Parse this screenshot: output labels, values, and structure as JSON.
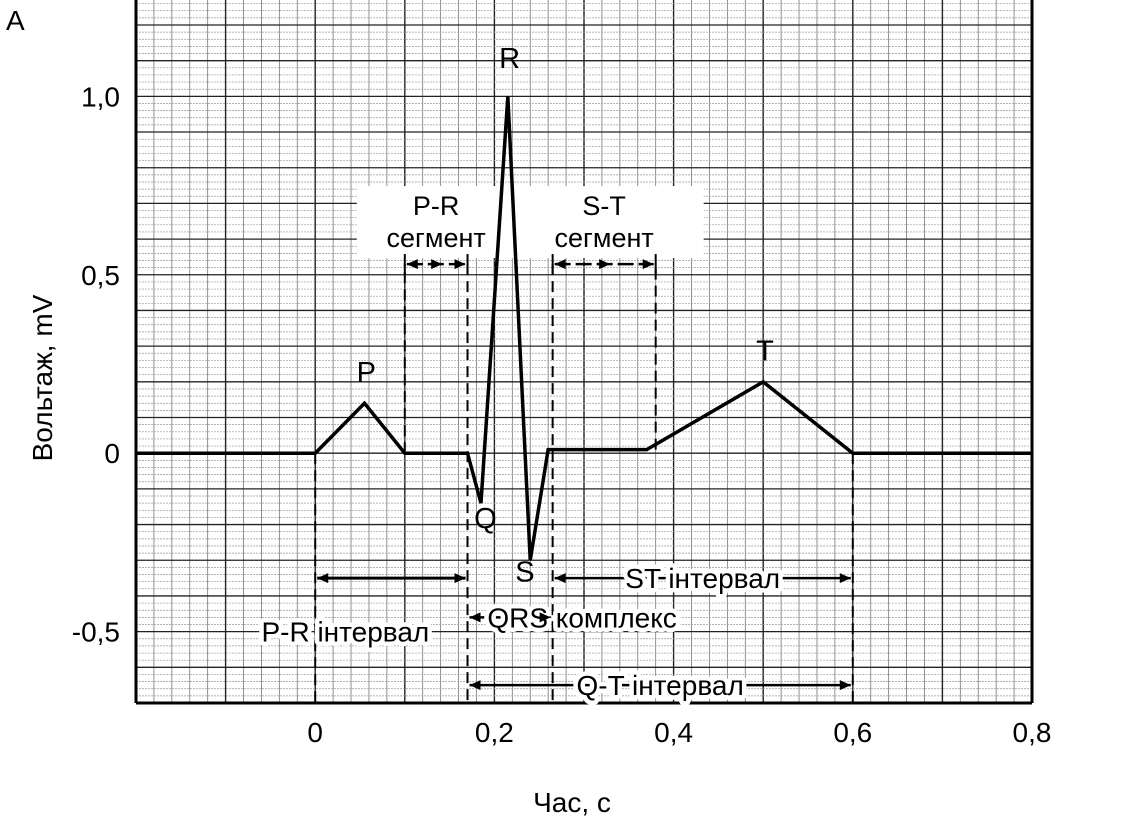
{
  "panel_letter": "A",
  "chart_data": {
    "type": "line",
    "title": "",
    "xlabel": "Час, с",
    "ylabel": "Вольтаж, mV",
    "xlim": [
      -0.2,
      0.8
    ],
    "ylim": [
      -0.7,
      1.27
    ],
    "x_ticks": [
      {
        "value": 0,
        "label": "0"
      },
      {
        "value": 0.2,
        "label": "0,2"
      },
      {
        "value": 0.4,
        "label": "0,4"
      },
      {
        "value": 0.6,
        "label": "0,6"
      },
      {
        "value": 0.8,
        "label": "0,8"
      }
    ],
    "y_ticks": [
      {
        "value": 1.0,
        "label": "1,0"
      },
      {
        "value": 0.5,
        "label": "0,5"
      },
      {
        "value": 0,
        "label": "0"
      },
      {
        "value": -0.5,
        "label": "-0,5"
      }
    ],
    "grid": true,
    "series": [
      {
        "x": [
          -0.2,
          0.0,
          0.055,
          0.1,
          0.17,
          0.185,
          0.215,
          0.24,
          0.26,
          0.37,
          0.5,
          0.6,
          0.8
        ],
        "y": [
          0,
          0,
          0.14,
          0,
          0,
          -0.14,
          1.0,
          -0.3,
          0.01,
          0.01,
          0.2,
          0,
          0
        ]
      }
    ],
    "wave_labels": [
      {
        "text": "P",
        "x": 0.057,
        "y": 0.2
      },
      {
        "text": "R",
        "x": 0.217,
        "y": 1.08
      },
      {
        "text": "Q",
        "x": 0.19,
        "y": -0.21
      },
      {
        "text": "S",
        "x": 0.234,
        "y": -0.36
      },
      {
        "text": "T",
        "x": 0.502,
        "y": 0.26
      }
    ],
    "annotations": [
      {
        "id": "pr-segment",
        "line1": "P-R",
        "line2": "сегмент",
        "from": 0.1,
        "to": 0.17,
        "y": 0.53
      },
      {
        "id": "st-segment",
        "line1": "S-T",
        "line2": "сегмент",
        "from": 0.265,
        "to": 0.38,
        "y": 0.53
      },
      {
        "id": "pr-interval",
        "label": "P-R інтервал",
        "from": 0.0,
        "to": 0.17,
        "y": -0.35
      },
      {
        "id": "st-interval",
        "label": "ST інтервал",
        "from": 0.265,
        "to": 0.6,
        "y": -0.35
      },
      {
        "id": "qrs-complex",
        "label": "QRS комплекс",
        "from": 0.17,
        "to": 0.265,
        "y": -0.46
      },
      {
        "id": "qt-interval",
        "label": "Q-T інтервал",
        "from": 0.17,
        "to": 0.6,
        "y": -0.65
      }
    ],
    "dashed_verticals": [
      {
        "x": 0.0,
        "y_from": 0,
        "y_to": -0.7
      },
      {
        "x": 0.1,
        "y_from": 0,
        "y_to": 0.53
      },
      {
        "x": 0.17,
        "y_from": 0.53,
        "y_to": -0.7
      },
      {
        "x": 0.265,
        "y_from": 0.53,
        "y_to": -0.7
      },
      {
        "x": 0.38,
        "y_from": 0.01,
        "y_to": 0.53
      },
      {
        "x": 0.6,
        "y_from": 0,
        "y_to": -0.7
      }
    ]
  }
}
